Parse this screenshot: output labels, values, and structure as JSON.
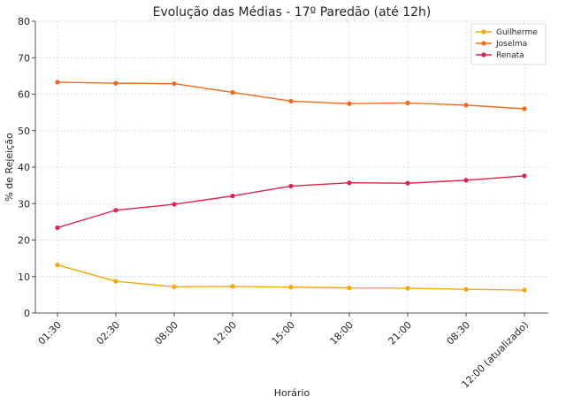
{
  "chart_data": {
    "type": "line",
    "title": "Evolução das Médias - 17º Paredão (até 12h)",
    "xlabel": "Horário",
    "ylabel": "% de Rejeição",
    "categories": [
      "01:30",
      "02:30",
      "08:00",
      "12:00",
      "15:00",
      "18:00",
      "21:00",
      "08:30",
      "12:00 (atualizado)"
    ],
    "ylim": [
      0,
      80
    ],
    "yticks": [
      0,
      10,
      20,
      30,
      40,
      50,
      60,
      70,
      80
    ],
    "grid": true,
    "legend_position": "top-right",
    "series": [
      {
        "name": "Guilherme",
        "color": "#f5a800",
        "values": [
          13.2,
          8.7,
          7.2,
          7.3,
          7.1,
          6.9,
          6.8,
          6.5,
          6.3
        ]
      },
      {
        "name": "Joselma",
        "color": "#ee6a1c",
        "values": [
          63.3,
          63.0,
          62.9,
          60.5,
          58.1,
          57.4,
          57.6,
          57.0,
          56.0
        ]
      },
      {
        "name": "Renata",
        "color": "#e3204f",
        "values": [
          23.4,
          28.2,
          29.8,
          32.1,
          34.8,
          35.7,
          35.6,
          36.4,
          37.6
        ]
      }
    ]
  }
}
